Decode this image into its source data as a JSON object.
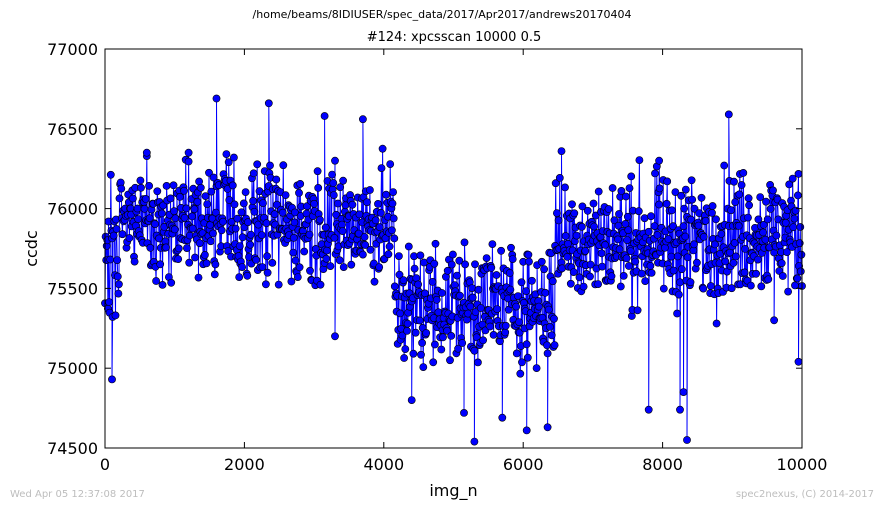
{
  "header": {
    "suptitle": "/home/beams/8IDIUSER/spec_data/2017/Apr2017/andrews20170404"
  },
  "footer": {
    "timestamp": "Wed Apr 05 12:37:08 2017",
    "credit": "spec2nexus, (C) 2014-2017"
  },
  "colors": {
    "series_line": "#0000ff",
    "marker_fill": "#0000ff",
    "marker_edge": "#000000",
    "axes": "#000000",
    "background": "#ffffff",
    "footer_text": "#bdbdbd"
  },
  "chart_data": {
    "type": "line",
    "title": "#124: xpcsscan 10000 0.5",
    "xlabel": "img_n",
    "ylabel": "ccdc",
    "xlim": [
      0,
      10000
    ],
    "ylim": [
      74500,
      77000
    ],
    "xticks": [
      "0",
      "2000",
      "4000",
      "6000",
      "8000",
      "10000"
    ],
    "yticks": [
      "74500",
      "75000",
      "75500",
      "76000",
      "76500",
      "77000"
    ],
    "grid": false,
    "legend": "none",
    "marker": "circle",
    "series": [
      {
        "segments": [
          {
            "x_start": 0,
            "x_end": 200,
            "mean": 75600,
            "spread": 380
          },
          {
            "x_start": 200,
            "x_end": 4150,
            "mean": 75900,
            "spread": 320
          },
          {
            "x_start": 4150,
            "x_end": 6450,
            "mean": 75400,
            "spread": 330
          },
          {
            "x_start": 6450,
            "x_end": 8750,
            "mean": 75800,
            "spread": 330
          },
          {
            "x_start": 8750,
            "x_end": 10000,
            "mean": 75850,
            "spread": 340
          }
        ],
        "points": [
          [
            1600,
            76690
          ],
          [
            2350,
            76660
          ],
          [
            3150,
            76580
          ],
          [
            3700,
            76560
          ],
          [
            8950,
            76590
          ],
          [
            100,
            74930
          ],
          [
            4400,
            74800
          ],
          [
            5300,
            74540
          ],
          [
            5700,
            74690
          ],
          [
            6050,
            74610
          ],
          [
            6350,
            74630
          ],
          [
            8350,
            74550
          ],
          [
            7800,
            74740
          ],
          [
            8250,
            74740
          ],
          [
            7950,
            76300
          ],
          [
            6550,
            76360
          ],
          [
            4950,
            75050
          ],
          [
            5150,
            74720
          ],
          [
            8300,
            74850
          ],
          [
            9600,
            75300
          ],
          [
            9950,
            75040
          ],
          [
            600,
            76350
          ],
          [
            1200,
            76350
          ],
          [
            3300,
            75200
          ]
        ]
      }
    ]
  }
}
